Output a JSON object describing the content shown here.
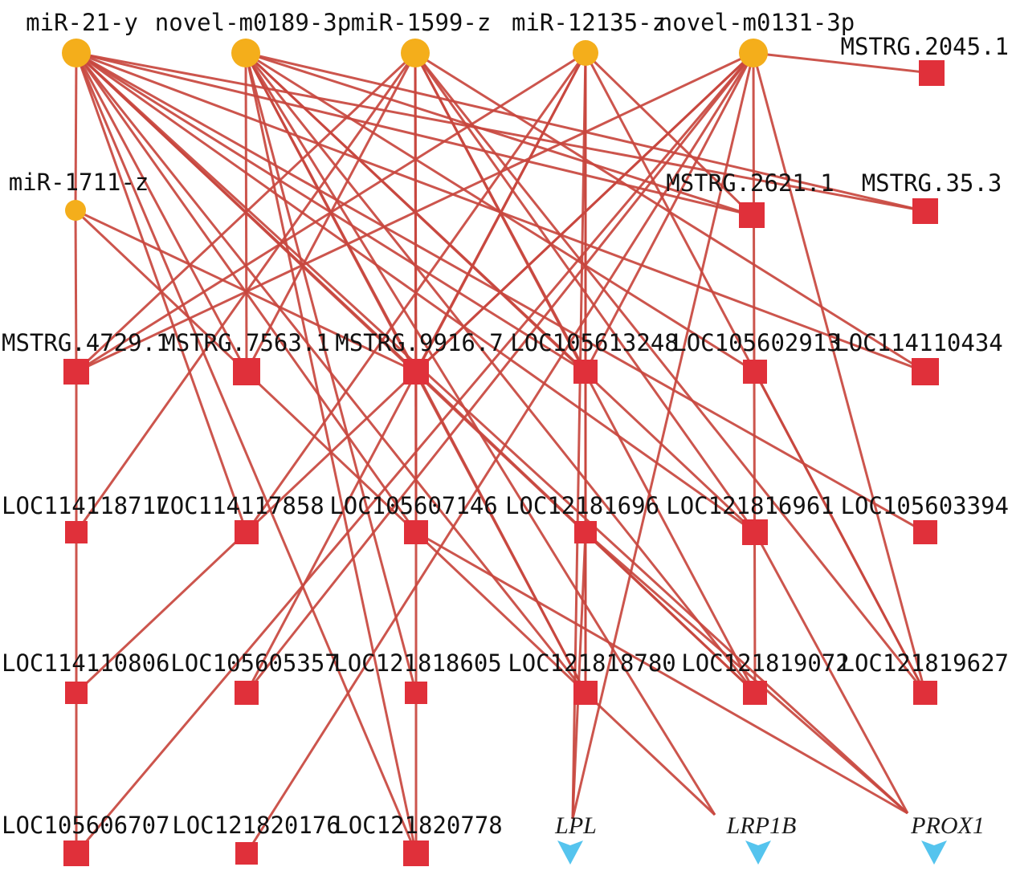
{
  "colors": {
    "edge": "#c8463e",
    "mirna_node": "#f4ae1b",
    "target_node": "#e0303a",
    "gene_node": "#55c4ee"
  },
  "mirnas": [
    {
      "id": "m1",
      "label": "miR-21-y"
    },
    {
      "id": "m2",
      "label": "novel-m0189-3p"
    },
    {
      "id": "m3",
      "label": "miR-1599-z"
    },
    {
      "id": "m4",
      "label": "miR-12135-z"
    },
    {
      "id": "m5",
      "label": "novel-m0131-3p"
    },
    {
      "id": "m6",
      "label": "miR-1711-z"
    }
  ],
  "targets": [
    {
      "id": "t_2045",
      "label": "MSTRG.2045.1"
    },
    {
      "id": "t_2621",
      "label": "MSTRG.2621.1"
    },
    {
      "id": "t_35",
      "label": "MSTRG.35.3"
    },
    {
      "id": "t_4729",
      "label": "MSTRG.4729.1"
    },
    {
      "id": "t_7563",
      "label": "MSTRG.7563.1"
    },
    {
      "id": "t_9916",
      "label": "MSTRG.9916.7"
    },
    {
      "id": "t_613248",
      "label": "LOC105613248"
    },
    {
      "id": "t_602913",
      "label": "LOC105602913"
    },
    {
      "id": "t_110434",
      "label": "LOC114110434"
    },
    {
      "id": "t_118717",
      "label": "LOC114118717"
    },
    {
      "id": "t_117858",
      "label": "LOC114117858"
    },
    {
      "id": "t_607146",
      "label": "LOC105607146"
    },
    {
      "id": "t_1696",
      "label": "LOC12181696"
    },
    {
      "id": "t_816961",
      "label": "LOC121816961"
    },
    {
      "id": "t_603394",
      "label": "LOC105603394"
    },
    {
      "id": "t_110806",
      "label": "LOC114110806"
    },
    {
      "id": "t_605357",
      "label": "LOC105605357"
    },
    {
      "id": "t_818605",
      "label": "LOC121818605"
    },
    {
      "id": "t_818780",
      "label": "LOC121818780"
    },
    {
      "id": "t_819072",
      "label": "LOC121819072"
    },
    {
      "id": "t_819627",
      "label": "LOC121819627"
    },
    {
      "id": "t_606707",
      "label": "LOC105606707"
    },
    {
      "id": "t_820176",
      "label": "LOC121820176"
    },
    {
      "id": "t_820778",
      "label": "LOC121820778"
    }
  ],
  "genes": [
    {
      "id": "g_lpl",
      "label": "LPL"
    },
    {
      "id": "g_lrp1b",
      "label": "LRP1B"
    },
    {
      "id": "g_prox1",
      "label": "PROX1"
    }
  ],
  "edges": [
    [
      "m1",
      "m6"
    ],
    [
      "m1",
      "t_2621"
    ],
    [
      "m1",
      "t_35"
    ],
    [
      "m1",
      "t_7563"
    ],
    [
      "m1",
      "t_9916"
    ],
    [
      "m1",
      "t_613248"
    ],
    [
      "m1",
      "t_110434"
    ],
    [
      "m1",
      "t_117858"
    ],
    [
      "m1",
      "t_607146"
    ],
    [
      "m1",
      "t_816961"
    ],
    [
      "m1",
      "t_603394"
    ],
    [
      "m1",
      "t_818780"
    ],
    [
      "m1",
      "t_819072"
    ],
    [
      "m1",
      "t_820778"
    ],
    [
      "m1",
      "g_prox1"
    ],
    [
      "m2",
      "t_2621"
    ],
    [
      "m2",
      "t_35"
    ],
    [
      "m2",
      "t_7563"
    ],
    [
      "m2",
      "t_9916"
    ],
    [
      "m2",
      "t_613248"
    ],
    [
      "m2",
      "t_602913"
    ],
    [
      "m2",
      "t_816961"
    ],
    [
      "m2",
      "t_818605"
    ],
    [
      "m2",
      "t_818780"
    ],
    [
      "m2",
      "t_819072"
    ],
    [
      "m2",
      "g_lrp1b"
    ],
    [
      "m2",
      "t_820778"
    ],
    [
      "m3",
      "t_4729"
    ],
    [
      "m3",
      "t_7563"
    ],
    [
      "m3",
      "t_9916"
    ],
    [
      "m3",
      "t_613248"
    ],
    [
      "m3",
      "t_110434"
    ],
    [
      "m3",
      "t_118717"
    ],
    [
      "m3",
      "t_607146"
    ],
    [
      "m3",
      "t_816961"
    ],
    [
      "m3",
      "t_819072"
    ],
    [
      "m3",
      "t_819627"
    ],
    [
      "m4",
      "t_4729"
    ],
    [
      "m4",
      "t_9916"
    ],
    [
      "m4",
      "t_117858"
    ],
    [
      "m4",
      "t_1696"
    ],
    [
      "m4",
      "t_605357"
    ],
    [
      "m4",
      "t_818780"
    ],
    [
      "m4",
      "t_819627"
    ],
    [
      "m4",
      "g_lpl"
    ],
    [
      "m4",
      "t_2621"
    ],
    [
      "m5",
      "t_2045"
    ],
    [
      "m5",
      "t_4729"
    ],
    [
      "m5",
      "t_9916"
    ],
    [
      "m5",
      "t_613248"
    ],
    [
      "m5",
      "t_110806"
    ],
    [
      "m5",
      "t_606707"
    ],
    [
      "m5",
      "t_820176"
    ],
    [
      "m5",
      "t_819072"
    ],
    [
      "m5",
      "g_lpl"
    ],
    [
      "m5",
      "t_819627"
    ],
    [
      "m5",
      "t_605357"
    ],
    [
      "m6",
      "t_4729"
    ],
    [
      "m6",
      "t_9916"
    ],
    [
      "m6",
      "t_818780"
    ],
    [
      "t_4729",
      "t_118717"
    ],
    [
      "t_118717",
      "t_110806"
    ],
    [
      "t_110806",
      "t_606707"
    ],
    [
      "t_9916",
      "t_607146"
    ],
    [
      "t_607146",
      "t_818605"
    ],
    [
      "t_818605",
      "t_820778"
    ],
    [
      "t_9916",
      "t_818780"
    ],
    [
      "t_9916",
      "t_819072"
    ],
    [
      "t_613248",
      "t_1696"
    ],
    [
      "t_1696",
      "t_818780"
    ],
    [
      "t_1696",
      "g_lpl"
    ],
    [
      "t_602913",
      "t_819627"
    ],
    [
      "t_607146",
      "g_prox1"
    ],
    [
      "t_818780",
      "g_lrp1b"
    ],
    [
      "t_1696",
      "g_prox1"
    ],
    [
      "t_816961",
      "g_prox1"
    ]
  ]
}
